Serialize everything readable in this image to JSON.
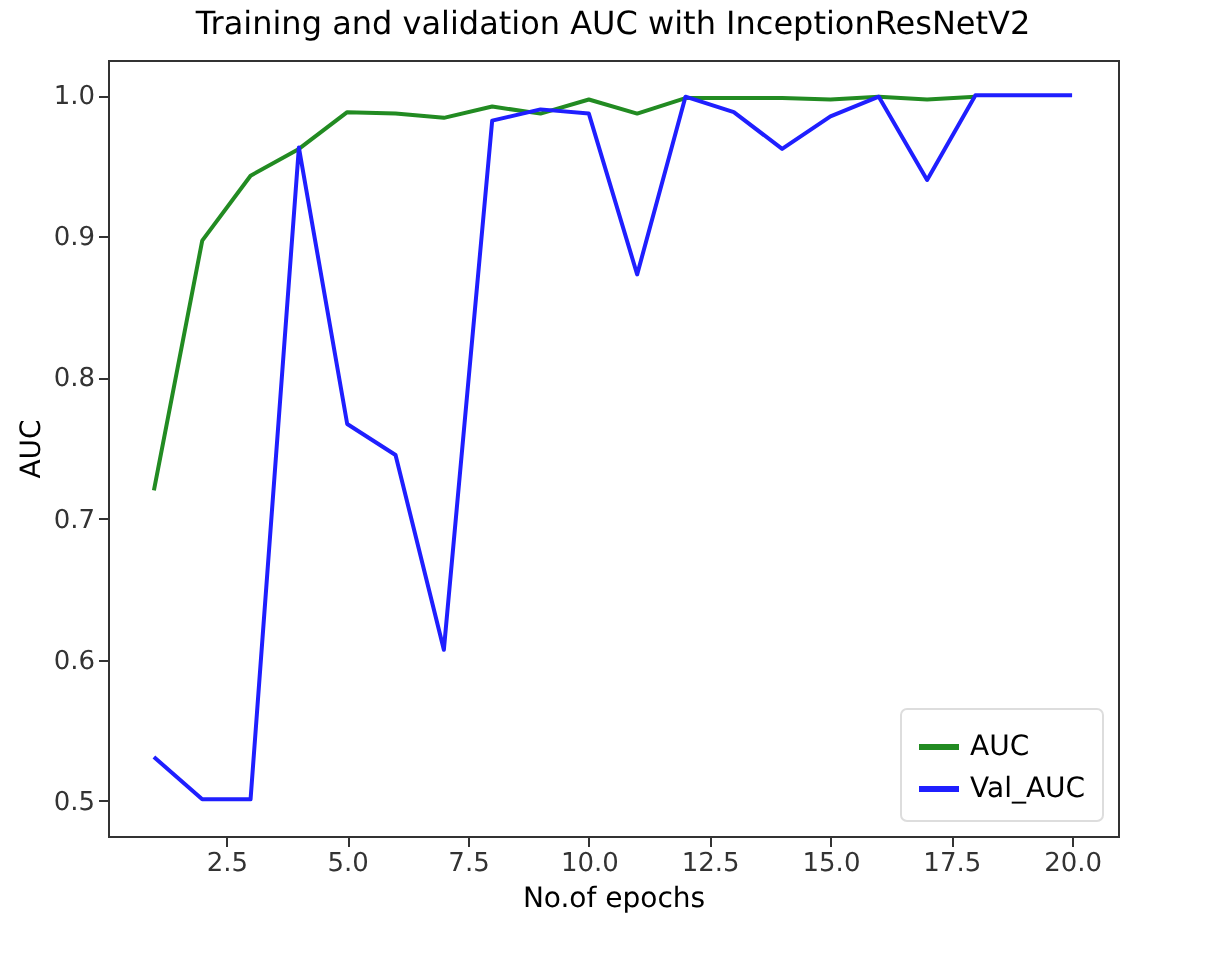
{
  "chart_data": {
    "type": "line",
    "title": "Training and validation AUC with InceptionResNetV2",
    "xlabel": "No.of epochs",
    "ylabel": "AUC",
    "x": [
      1,
      2,
      3,
      4,
      5,
      6,
      7,
      8,
      9,
      10,
      11,
      12,
      13,
      14,
      15,
      16,
      17,
      18,
      19,
      20
    ],
    "series": [
      {
        "name": "AUC",
        "color": "#228b22",
        "values": [
          0.72,
          0.897,
          0.943,
          0.962,
          0.988,
          0.987,
          0.984,
          0.992,
          0.987,
          0.997,
          0.987,
          0.998,
          0.998,
          0.998,
          0.997,
          0.999,
          0.997,
          0.999,
          null,
          null
        ]
      },
      {
        "name": "Val_AUC",
        "color": "#1f1fff",
        "values": [
          0.531,
          0.501,
          0.501,
          0.963,
          0.767,
          0.745,
          0.607,
          0.982,
          0.99,
          0.987,
          0.873,
          0.999,
          0.988,
          0.962,
          0.985,
          0.999,
          0.94,
          1.0,
          1.0,
          1.0
        ]
      }
    ],
    "xlim": [
      0.05,
      20.95
    ],
    "ylim": [
      0.475,
      1.025
    ],
    "xticks": [
      {
        "value": 2.5,
        "label": "2.5"
      },
      {
        "value": 5,
        "label": "5.0"
      },
      {
        "value": 7.5,
        "label": "7.5"
      },
      {
        "value": 10,
        "label": "10.0"
      },
      {
        "value": 12.5,
        "label": "12.5"
      },
      {
        "value": 15,
        "label": "15.0"
      },
      {
        "value": 17.5,
        "label": "17.5"
      },
      {
        "value": 20,
        "label": "20.0"
      }
    ],
    "yticks": [
      0.5,
      0.6,
      0.7,
      0.8,
      0.9,
      {
        "value": 1,
        "label": "1.0"
      }
    ],
    "legend": "bottom right",
    "grid": false
  }
}
